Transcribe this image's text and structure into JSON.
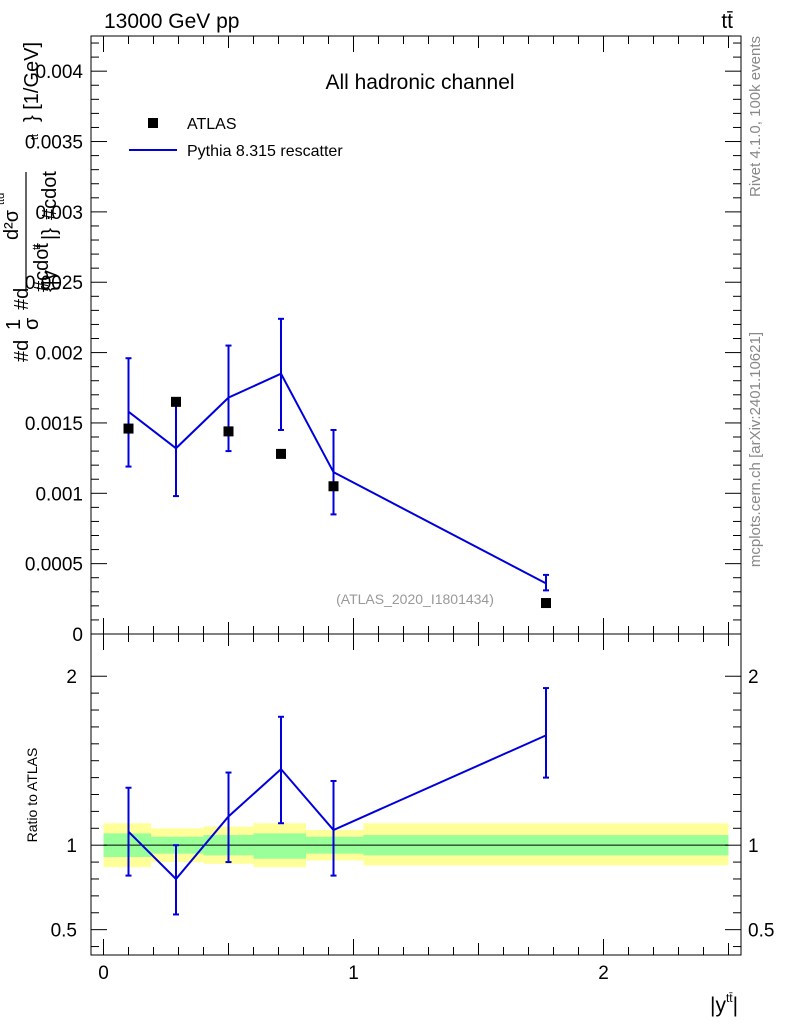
{
  "header": {
    "left": "13000 GeV pp",
    "right": "tt̄"
  },
  "side_labels": {
    "rivet": "Rivet 4.1.0,  100k events",
    "mcplots": "mcplots.cern.ch [arXiv:2401.10621]"
  },
  "chart_data": [
    {
      "type": "scatter",
      "title": "All hadronic channel",
      "analysis": "(ATLAS_2020_I1801434)",
      "ylabel": "#d{1}{σ} #d{d^{2}σ^{tt̄}}{d|y^{tt̄}| #cdot ...} [1/GeV]",
      "ylabel_lines": [
        "#d",
        "1",
        "σ",
        "#d",
        "d²σ",
        "ttd",
        "#cdot",
        "{|y",
        "tt",
        "|}",
        "#cdot",
        "tt",
        "} [1/GeV]"
      ],
      "xlabel": "|y^{tt̄}|",
      "xlim": [
        -0.05,
        2.55
      ],
      "ylim": [
        0,
        0.00425
      ],
      "xticks": [
        {
          "v": 0,
          "label": "0"
        },
        {
          "v": 1,
          "label": "1"
        },
        {
          "v": 2,
          "label": "2"
        }
      ],
      "yticks": [
        {
          "v": 0,
          "label": "0"
        },
        {
          "v": 0.0005,
          "label": "0.0005"
        },
        {
          "v": 0.001,
          "label": "0.001"
        },
        {
          "v": 0.0015,
          "label": "0.0015"
        },
        {
          "v": 0.002,
          "label": "0.002"
        },
        {
          "v": 0.0025,
          "label": "0.0025"
        },
        {
          "v": 0.003,
          "label": "0.003"
        },
        {
          "v": 0.0035,
          "label": "0.0035"
        },
        {
          "v": 0.004,
          "label": "0.004"
        }
      ],
      "legend": [
        {
          "name": "ATLAS",
          "kind": "marker",
          "color": "#000000"
        },
        {
          "name": "Pythia 8.315 rescatter",
          "kind": "line",
          "color": "#0000dd"
        }
      ],
      "series": [
        {
          "name": "ATLAS",
          "x": [
            0.1,
            0.29,
            0.5,
            0.71,
            0.92,
            1.77
          ],
          "y": [
            0.00146,
            0.00165,
            0.00144,
            0.00128,
            0.00105,
            0.00022
          ]
        },
        {
          "name": "Pythia 8.315 rescatter",
          "x": [
            0.1,
            0.29,
            0.5,
            0.71,
            0.92,
            1.77
          ],
          "y": [
            0.00158,
            0.00132,
            0.00168,
            0.00185,
            0.00115,
            0.00036
          ],
          "err_lo": [
            0.00119,
            0.00098,
            0.0013,
            0.00145,
            0.00085,
            0.00031
          ],
          "err_hi": [
            0.00196,
            0.00167,
            0.00205,
            0.00224,
            0.00145,
            0.00042
          ]
        }
      ]
    },
    {
      "type": "line",
      "ylabel": "Ratio to ATLAS",
      "xlim": [
        -0.05,
        2.55
      ],
      "ylim": [
        0.35,
        2.25
      ],
      "yticks": [
        {
          "v": 0.5,
          "label": "0.5"
        },
        {
          "v": 1,
          "label": "1"
        },
        {
          "v": 2,
          "label": "2"
        }
      ],
      "bands": [
        {
          "x0": 0.0,
          "x1": 0.19,
          "y_lo": 0.87,
          "y_hi": 1.13,
          "inner_lo": 0.93,
          "inner_hi": 1.07
        },
        {
          "x0": 0.19,
          "x1": 0.4,
          "y_lo": 0.9,
          "y_hi": 1.1,
          "inner_lo": 0.95,
          "inner_hi": 1.05
        },
        {
          "x0": 0.4,
          "x1": 0.6,
          "y_lo": 0.89,
          "y_hi": 1.11,
          "inner_lo": 0.94,
          "inner_hi": 1.06
        },
        {
          "x0": 0.6,
          "x1": 0.81,
          "y_lo": 0.87,
          "y_hi": 1.13,
          "inner_lo": 0.92,
          "inner_hi": 1.07
        },
        {
          "x0": 0.81,
          "x1": 1.04,
          "y_lo": 0.91,
          "y_hi": 1.09,
          "inner_lo": 0.95,
          "inner_hi": 1.05
        },
        {
          "x0": 1.04,
          "x1": 2.5,
          "y_lo": 0.88,
          "y_hi": 1.13,
          "inner_lo": 0.94,
          "inner_hi": 1.06
        }
      ],
      "series": [
        {
          "name": "Pythia 8.315 rescatter / ATLAS",
          "x": [
            0.1,
            0.29,
            0.5,
            0.71,
            0.92,
            1.77
          ],
          "y": [
            1.08,
            0.8,
            1.17,
            1.45,
            1.09,
            1.65
          ],
          "err_lo": [
            0.82,
            0.59,
            0.9,
            1.13,
            0.82,
            1.4
          ],
          "err_hi": [
            1.34,
            1.0,
            1.43,
            1.76,
            1.38,
            1.93
          ]
        }
      ]
    }
  ],
  "colors": {
    "model": "#0000dd",
    "data": "#000000",
    "band_outer": "#ffff99",
    "band_inner": "#99ff99"
  }
}
